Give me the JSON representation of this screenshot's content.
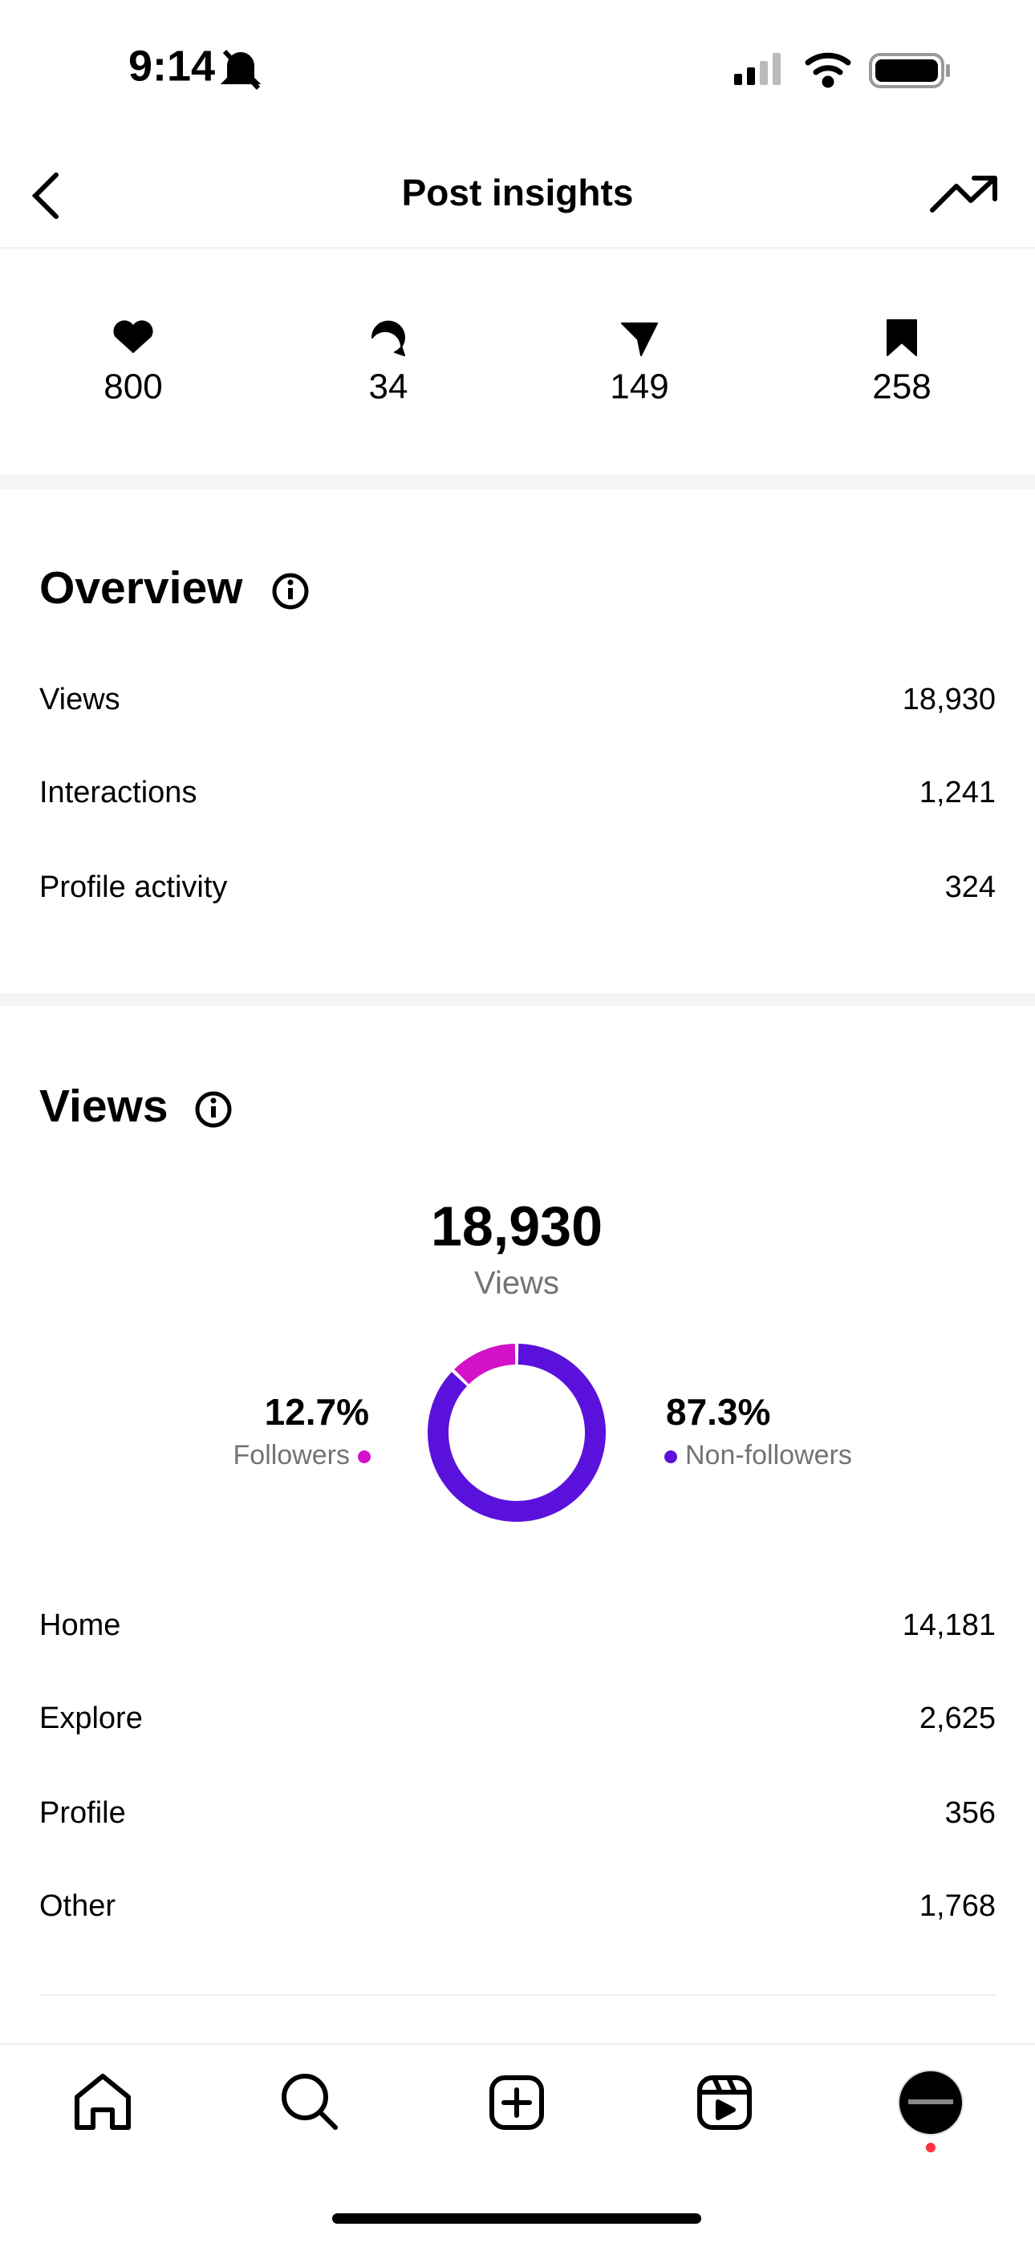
{
  "status_bar": {
    "time": "9:14"
  },
  "header": {
    "title": "Post insights"
  },
  "stats": [
    {
      "icon": "likes",
      "value": 800
    },
    {
      "icon": "comments",
      "value": 34
    },
    {
      "icon": "shares",
      "value": 149
    },
    {
      "icon": "saves",
      "value": 258
    }
  ],
  "overview": {
    "title": "Overview",
    "rows": [
      {
        "label": "Views",
        "value": "18,930"
      },
      {
        "label": "Interactions",
        "value": "1,241"
      },
      {
        "label": "Profile activity",
        "value": "324"
      }
    ]
  },
  "views": {
    "title": "Views",
    "total": "18,930",
    "total_label": "Views",
    "donut": {
      "type": "pie",
      "categories": [
        "Followers",
        "Non-followers"
      ],
      "values": [
        12.7,
        87.3
      ],
      "value_labels": [
        "12.7%",
        "87.3%"
      ],
      "colors": [
        "#d211c8",
        "#5b11dc"
      ]
    },
    "rows": [
      {
        "label": "Home",
        "value": "14,181"
      },
      {
        "label": "Explore",
        "value": "2,625"
      },
      {
        "label": "Profile",
        "value": "356"
      },
      {
        "label": "Other",
        "value": "1,768"
      }
    ]
  }
}
